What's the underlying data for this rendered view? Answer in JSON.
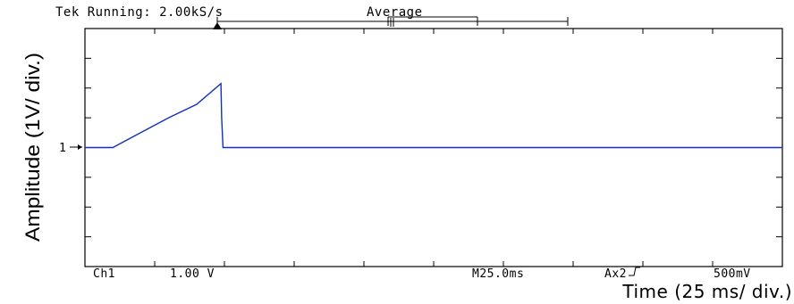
{
  "header": {
    "status": "Tek Running: 2.00kS/s",
    "mode": "Average"
  },
  "footer": {
    "channel": "Ch1",
    "volts_per_div": "1.00 V",
    "timebase": "M25.0ms",
    "trigger": "Ax2",
    "trigger_slope_icon": "rising-edge-icon",
    "trigger_level": "500mV"
  },
  "channel_marker": {
    "label": "1",
    "icon": "arrow-right-icon"
  },
  "chart_data": {
    "type": "line",
    "xlabel": "Time (25 ms/ div.)",
    "ylabel": "Amplitude (1V/ div.)",
    "xlim": [
      0,
      10
    ],
    "ylim": [
      -4,
      4
    ],
    "grid": false,
    "line_color": "#1030c0",
    "series": [
      {
        "x": [
          0,
          0.4,
          0.8,
          1.2,
          1.6,
          1.95,
          1.96,
          1.98,
          2.5,
          3.0,
          4.0,
          5.0,
          6.0,
          7.0,
          8.0,
          9.0,
          10.0
        ],
        "values": [
          0,
          0,
          0.5,
          1.0,
          1.45,
          2.15,
          1.0,
          0,
          0,
          0,
          0,
          0,
          0,
          0,
          0,
          0,
          0
        ]
      }
    ]
  }
}
